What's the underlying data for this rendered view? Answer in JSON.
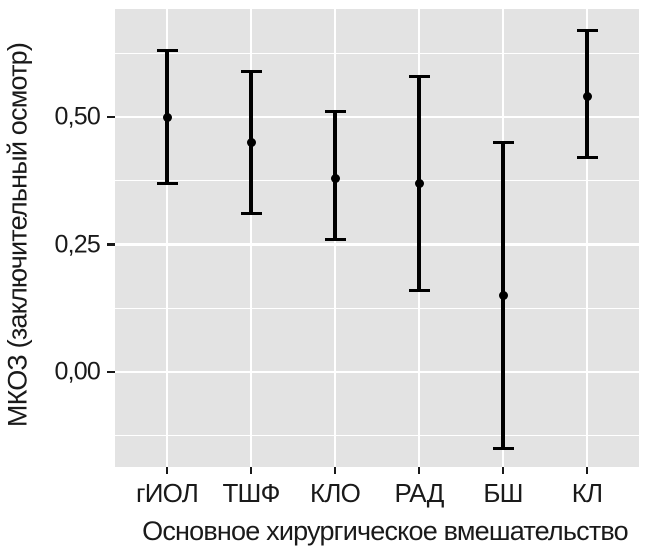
{
  "figure": {
    "colors": {
      "panel_background": "#e3e3e3",
      "gridline": "#ffffff",
      "marker": "#000000",
      "text": "#1a1a1a"
    }
  },
  "chart_data": {
    "type": "scatter",
    "subtype": "point-range (point estimate with vertical error bars, ggplot style)",
    "title": "",
    "xlabel": "Основное хирургическое вмешательство",
    "ylabel": "МКОЗ (заключительный осмотр)",
    "categories": [
      "гИОЛ",
      "ТШФ",
      "КЛО",
      "РАД",
      "БШ",
      "КЛ"
    ],
    "series": [
      {
        "name": "МКОЗ (заключительный осмотр)",
        "points": [
          {
            "category": "гИОЛ",
            "mid": 0.5,
            "lower": 0.37,
            "upper": 0.63
          },
          {
            "category": "ТШФ",
            "mid": 0.45,
            "lower": 0.31,
            "upper": 0.59
          },
          {
            "category": "КЛО",
            "mid": 0.38,
            "lower": 0.26,
            "upper": 0.51
          },
          {
            "category": "РАД",
            "mid": 0.37,
            "lower": 0.16,
            "upper": 0.58
          },
          {
            "category": "БШ",
            "mid": 0.15,
            "lower": -0.15,
            "upper": 0.45
          },
          {
            "category": "КЛ",
            "mid": 0.54,
            "lower": 0.42,
            "upper": 0.67
          }
        ]
      }
    ],
    "ylim": [
      -0.19,
      0.71
    ],
    "y_major_ticks": {
      "values": [
        0.5,
        0.25,
        0.0
      ],
      "labels": [
        "0,50",
        "0,25",
        "0,00"
      ]
    },
    "y_minor_gridlines": [
      0.625,
      0.375,
      0.125,
      -0.125
    ],
    "grid": "horizontal major+minor white lines; one vertical white major line per category; gray panel",
    "legend": "none"
  }
}
